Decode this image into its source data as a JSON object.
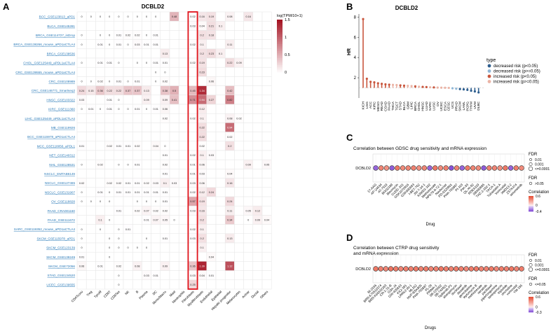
{
  "chart_data": [
    {
      "panel": "A",
      "type": "heatmap",
      "title": "DCBLD2",
      "legend_title": "log(TPM/10+1)",
      "scale_ticks": [
        1.5,
        1,
        0.5,
        0
      ],
      "columns": [
        "CD4Tconv",
        "Treg",
        "Tprolif",
        "CD8T",
        "CD8Tex",
        "NK",
        "B",
        "Plasma",
        "DC",
        "Mono/Macro",
        "Mast",
        "Neutrophils",
        "Fibroblasts",
        "Myofibroblasts",
        "Endothelial",
        "Epithelial",
        "Hepatic progenitor",
        "Melanocytes",
        "Acinar",
        "Ductal",
        "Others"
      ],
      "highlight_column": "Fibroblasts",
      "rows": [
        {
          "name": "BCC_GSE123813_aPD1",
          "values": [
            0,
            0,
            0,
            0,
            0,
            0,
            0,
            0,
            0,
            null,
            0.48,
            null,
            0.02,
            0.16,
            0.19,
            null,
            0.08,
            null,
            0.16,
            null,
            null
          ]
        },
        {
          "name": "BLCA_GSE145281",
          "values": [
            null,
            null,
            null,
            null,
            null,
            null,
            null,
            null,
            null,
            null,
            null,
            null,
            0.03,
            0.04,
            0.21,
            0.1,
            null,
            null,
            null,
            null,
            null
          ]
        },
        {
          "name": "BRCA_GSE114727_inDrop",
          "values": [
            0,
            null,
            0,
            0,
            0.01,
            0.02,
            0.02,
            0,
            0.01,
            null,
            null,
            null,
            null,
            0.2,
            0.18,
            null,
            null,
            null,
            null,
            null,
            null
          ]
        },
        {
          "name": "BRCA_GSE138266_mouse_aPD1aCTLA4",
          "values": [
            0,
            null,
            0.01,
            0,
            0.01,
            0,
            0.03,
            0.01,
            0.01,
            null,
            null,
            null,
            0.02,
            0.1,
            null,
            null,
            0.11,
            null,
            null,
            null,
            null
          ]
        },
        {
          "name": "BRCA_GSE138536",
          "values": [
            null,
            null,
            null,
            null,
            null,
            null,
            null,
            null,
            null,
            0.13,
            null,
            null,
            null,
            0.2,
            0.23,
            0.1,
            null,
            null,
            null,
            null,
            null
          ]
        },
        {
          "name": "CHOL_GSE125449_aPDL1aCTLA4",
          "values": [
            0,
            null,
            0.01,
            0.01,
            0,
            null,
            0,
            0,
            0.01,
            0.01,
            null,
            null,
            0.02,
            0.19,
            null,
            null,
            0.22,
            0.09,
            null,
            null,
            null
          ]
        },
        {
          "name": "CRC_GSE139555_mouse_aPD1aCTLA4",
          "values": [
            null,
            null,
            null,
            null,
            null,
            null,
            null,
            null,
            0,
            0,
            null,
            null,
            null,
            0.23,
            null,
            null,
            null,
            null,
            null,
            null,
            null
          ]
        },
        {
          "name": "CRC_GSE108989",
          "values": [
            0,
            0,
            0.02,
            0,
            0.01,
            0,
            0.01,
            null,
            0,
            0.02,
            null,
            null,
            null,
            null,
            0.06,
            null,
            null,
            null,
            null,
            null,
            null
          ]
        },
        {
          "name": "CRC_GSE146771_Smartseq2",
          "values": [
            0.24,
            0.15,
            0.36,
            0.22,
            0.22,
            0.37,
            0.37,
            0.13,
            null,
            0.38,
            0.5,
            null,
            0.45,
            1.34,
            null,
            null,
            0.42,
            null,
            null,
            null,
            null
          ]
        },
        {
          "name": "HNSC_GSE103322",
          "values": [
            0.03,
            null,
            null,
            0.01,
            0,
            null,
            null,
            0.09,
            null,
            0.09,
            0.41,
            null,
            0.71,
            0.94,
            0.27,
            null,
            0.82,
            null,
            null,
            null,
            null
          ]
        },
        {
          "name": "KIRC_GSE111360",
          "values": [
            0,
            0.01,
            0,
            0.01,
            0,
            0,
            0.01,
            0,
            0.01,
            0.06,
            null,
            null,
            null,
            0.12,
            null,
            null,
            null,
            null,
            null,
            null,
            null
          ]
        },
        {
          "name": "LIHC_GSE125449_aPDL1aCTLA4",
          "values": [
            null,
            null,
            null,
            null,
            null,
            null,
            null,
            null,
            null,
            0.02,
            null,
            null,
            0.02,
            0.1,
            null,
            null,
            0.08,
            0.02,
            null,
            null,
            null
          ]
        },
        {
          "name": "MB_GSE119926",
          "values": [
            null,
            null,
            null,
            null,
            null,
            null,
            null,
            null,
            null,
            null,
            null,
            null,
            null,
            0.22,
            null,
            null,
            0.94,
            null,
            null,
            null,
            null
          ]
        },
        {
          "name": "BCC_GSE115978_aPD1aCTLA4",
          "values": [
            null,
            null,
            null,
            null,
            null,
            null,
            null,
            null,
            null,
            null,
            null,
            null,
            null,
            0.22,
            null,
            null,
            0.02,
            null,
            null,
            null,
            null
          ]
        },
        {
          "name": "MCC_GSE118056_aPDL1",
          "values": [
            0.01,
            null,
            null,
            0.02,
            0.01,
            0.01,
            0.02,
            null,
            0.04,
            0,
            null,
            null,
            null,
            0.02,
            null,
            null,
            0.2,
            null,
            null,
            null,
            null
          ]
        },
        {
          "name": "NET_GSE140312",
          "values": [
            null,
            null,
            null,
            null,
            null,
            null,
            null,
            null,
            null,
            0.01,
            null,
            null,
            0.02,
            0.1,
            0.03,
            null,
            null,
            null,
            null,
            null,
            null
          ]
        },
        {
          "name": "NHL_GSE128531",
          "values": [
            0,
            null,
            0.02,
            null,
            0,
            0,
            0.01,
            null,
            null,
            0.02,
            null,
            null,
            0.01,
            0.06,
            null,
            null,
            null,
            null,
            0.09,
            null,
            0.05
          ]
        },
        {
          "name": "NSCLC_EMTAB6149",
          "values": [
            null,
            null,
            null,
            null,
            null,
            null,
            null,
            null,
            null,
            0.01,
            null,
            null,
            0.01,
            0.03,
            null,
            null,
            0.04,
            null,
            null,
            null,
            null
          ]
        },
        {
          "name": "NSCLC_GSE127465",
          "values": [
            0.02,
            null,
            null,
            0.02,
            0.02,
            0.01,
            0.01,
            0.02,
            0.03,
            0.1,
            0.03,
            null,
            0.03,
            0.06,
            null,
            null,
            0.16,
            null,
            null,
            null,
            null
          ]
        },
        {
          "name": "NSCLC_GSE131907",
          "values": [
            0,
            null,
            0.01,
            0,
            0.01,
            0.01,
            0.01,
            0.01,
            0.01,
            0.01,
            null,
            null,
            0.02,
            0.12,
            0.24,
            null,
            null,
            null,
            null,
            null,
            null
          ]
        },
        {
          "name": "OV_GSE118828",
          "values": [
            0,
            0,
            0,
            0,
            null,
            null,
            0,
            0,
            0,
            0.01,
            null,
            null,
            0.57,
            0.19,
            null,
            null,
            0.24,
            null,
            null,
            null,
            null
          ]
        },
        {
          "name": "PAAD_CRA001160",
          "values": [
            null,
            null,
            null,
            null,
            0.01,
            null,
            0.02,
            0.07,
            0.02,
            0.02,
            null,
            null,
            0.03,
            0.16,
            null,
            null,
            0.11,
            null,
            0.05,
            0.12,
            null
          ]
        },
        {
          "name": "PAAD_GSE111672",
          "values": [
            null,
            null,
            0.1,
            0,
            null,
            null,
            null,
            0.01,
            0.07,
            0.05,
            0,
            null,
            null,
            0.2,
            null,
            null,
            0.34,
            null,
            0,
            0.09,
            0.04
          ]
        },
        {
          "name": "SARC_GSE119352_mouse_aPD1aCTLA4",
          "values": [
            0,
            null,
            0,
            null,
            0,
            0.01,
            null,
            null,
            null,
            null,
            null,
            null,
            0.02,
            0.1,
            null,
            null,
            null,
            null,
            null,
            null,
            null
          ]
        },
        {
          "name": "SKCM_GSE115978_aPD1",
          "values": [
            0,
            null,
            null,
            0,
            0,
            null,
            null,
            0,
            null,
            0.01,
            null,
            null,
            0.03,
            0.2,
            null,
            null,
            0.13,
            null,
            null,
            null,
            null
          ]
        },
        {
          "name": "SKCM_GSE123139",
          "values": [
            0,
            null,
            null,
            0,
            0,
            0,
            0,
            0,
            null,
            null,
            null,
            null,
            null,
            0.1,
            null,
            null,
            null,
            null,
            null,
            null,
            null
          ]
        },
        {
          "name": "SKCM_GSE139249",
          "values": [
            0.01,
            null,
            null,
            0,
            null,
            null,
            null,
            null,
            null,
            null,
            null,
            null,
            null,
            null,
            0.04,
            null,
            null,
            null,
            null,
            null,
            null
          ]
        },
        {
          "name": "SKCM_GSE72056",
          "values": [
            0.06,
            null,
            0.01,
            null,
            0.02,
            null,
            0.08,
            null,
            null,
            0.09,
            null,
            null,
            0.36,
            1.39,
            null,
            null,
            1.12,
            null,
            null,
            null,
            null
          ]
        },
        {
          "name": "STAD_GSE134520",
          "values": [
            null,
            null,
            null,
            null,
            0,
            null,
            null,
            0.03,
            0.01,
            null,
            null,
            null,
            0.03,
            0.04,
            0.01,
            null,
            null,
            null,
            null,
            null,
            null
          ]
        },
        {
          "name": "UCEC_GSE139555",
          "values": [
            null,
            null,
            null,
            null,
            0,
            null,
            null,
            null,
            null,
            null,
            null,
            null,
            0.25,
            null,
            null,
            null,
            null,
            null,
            null,
            null,
            null
          ]
        }
      ]
    },
    {
      "panel": "B",
      "type": "lollipop",
      "title": "DCBLD2",
      "ylabel": "HR",
      "yticks": [
        2,
        4,
        6,
        8
      ],
      "ylim": [
        0,
        8.3
      ],
      "legend_title": "type",
      "legend": [
        {
          "label": "decreased risk (p<0.05)",
          "color": "#2f5f8f"
        },
        {
          "label": "decreased risk (p>=0.05)",
          "color": "#8fb6d6"
        },
        {
          "label": "increased risk (p<0.05)",
          "color": "#c9573e"
        },
        {
          "label": "increased risk (p>=0.05)",
          "color": "#ebb4a6"
        }
      ],
      "categories": [
        "KICH",
        "LGG",
        "ACC",
        "KIRC",
        "MESO",
        "READ",
        "COAD",
        "PAAD",
        "THCA",
        "TGCT",
        "STAD",
        "BLCA",
        "GBM",
        "LIHC",
        "BRCA",
        "CHOL",
        "HNSC",
        "LUAD",
        "SARC",
        "LUSC",
        "OV",
        "UCEC",
        "ESCA",
        "CESC",
        "UCS",
        "PRAD",
        "SKCM",
        "LAML",
        "PCPG",
        "THYM",
        "UVM",
        "DLBC"
      ],
      "values": [
        7.8,
        1.9,
        1.6,
        1.55,
        1.45,
        1.4,
        1.35,
        1.32,
        1.3,
        1.28,
        1.25,
        1.22,
        1.2,
        1.18,
        1.15,
        1.12,
        1.1,
        1.08,
        1.06,
        1.05,
        1.03,
        1.02,
        1.01,
        1.0,
        0.96,
        0.92,
        0.88,
        0.85,
        0.8,
        0.72,
        0.65,
        0.55
      ],
      "types": [
        2,
        2,
        2,
        2,
        2,
        2,
        2,
        2,
        3,
        3,
        2,
        2,
        3,
        3,
        2,
        3,
        2,
        2,
        3,
        2,
        3,
        3,
        3,
        3,
        1,
        1,
        0,
        0,
        0,
        0,
        0,
        0
      ]
    },
    {
      "panel": "C",
      "type": "dot",
      "title": "Correlation between GDSC drug sensitivity and mRNA expression",
      "gene": "DCBLD2",
      "xlabel": "Drug",
      "fdr_title": "FDR",
      "fdr_items": [
        "0.01",
        "0.001",
        "<=0.0001"
      ],
      "fdr_ns": "FDR",
      "fdr_ns_label": ">0.05",
      "corr_title": "Correlation",
      "corr_ticks": [
        "-0.4",
        "0",
        "0.6"
      ],
      "drugs": [
        "17-AAG",
        "AP-24534",
        "AT-7519",
        "BIX02189",
        "Bleomycin",
        "CUDC-101",
        "GSK1070916",
        "GSK690693",
        "I-BET-762",
        "JW-7-24-1",
        "KIN001-102",
        "Methotrexate",
        "NPK76-II-72-1",
        "Navitoclax",
        "PD-0325901",
        "PHA-793887",
        "PI-103",
        "PIK-93",
        "QL-XI-92",
        "RDEA119",
        "SB590885",
        "THZ-2-102-1",
        "TPCA-1",
        "Tubastatin A",
        "Vorinostat",
        "XMD13-2",
        "ZSTK474",
        "selumetinib"
      ],
      "values": [
        -0.3,
        0.4,
        0.35,
        -0.32,
        0.45,
        0.38,
        0.4,
        0.42,
        0.36,
        0.4,
        -0.3,
        0.45,
        0.38,
        0.42,
        -0.35,
        0.4,
        -0.3,
        0.44,
        0.4,
        0.38,
        -0.33,
        0.42,
        0.4,
        0.36,
        0.45,
        -0.3,
        0.42,
        0.38
      ]
    },
    {
      "panel": "D",
      "type": "dot",
      "title": "Correlation between CTRP drug sensitivity and mRNA expression",
      "gene": "DCBLD2",
      "xlabel": "Drugs",
      "fdr_title": "FDR",
      "fdr_items": [
        "0.01",
        "0.001",
        "<=0.0001"
      ],
      "fdr_ns": "FDR",
      "fdr_ns_label": "<=0.05",
      "corr_title": "Correlation",
      "corr_ticks": [
        "-0.3",
        "0",
        "0.6"
      ],
      "drugs": [
        "BI-2536",
        "BRD-K70511574",
        "BRD-K66532283",
        "CR-1-31-B",
        "GSK-J4",
        "GW-405833",
        "KX2-391",
        "LRRK2-IN-1",
        "ML162",
        "NVP-BSK805",
        "PHA-793887",
        "PL-DI",
        "PRIMA-1",
        "SB-225002",
        "SB-743921",
        "Tipifarnib-P1",
        "alvespimycin",
        "docetaxel",
        "dasatinib",
        "gemcitabine",
        "leptomycin B",
        "methotrexate",
        "neratinib",
        "paclitaxel",
        "piperlongumine",
        "tanespimycin",
        "triptolide",
        "vincristine",
        "vorinostat",
        "YM-155"
      ],
      "values": [
        0.45,
        0.42,
        0.4,
        0.46,
        0.44,
        0.4,
        0.43,
        0.42,
        0.45,
        0.41,
        0.44,
        0.4,
        0.42,
        0.45,
        0.43,
        0.41,
        0.44,
        0.42,
        0.4,
        0.43,
        0.45,
        0.41,
        0.42,
        0.44,
        0.4,
        0.43,
        0.42,
        0.45,
        0.41,
        0.43
      ]
    }
  ],
  "labels": {
    "A": "A",
    "B": "B",
    "C": "C",
    "D": "D"
  }
}
